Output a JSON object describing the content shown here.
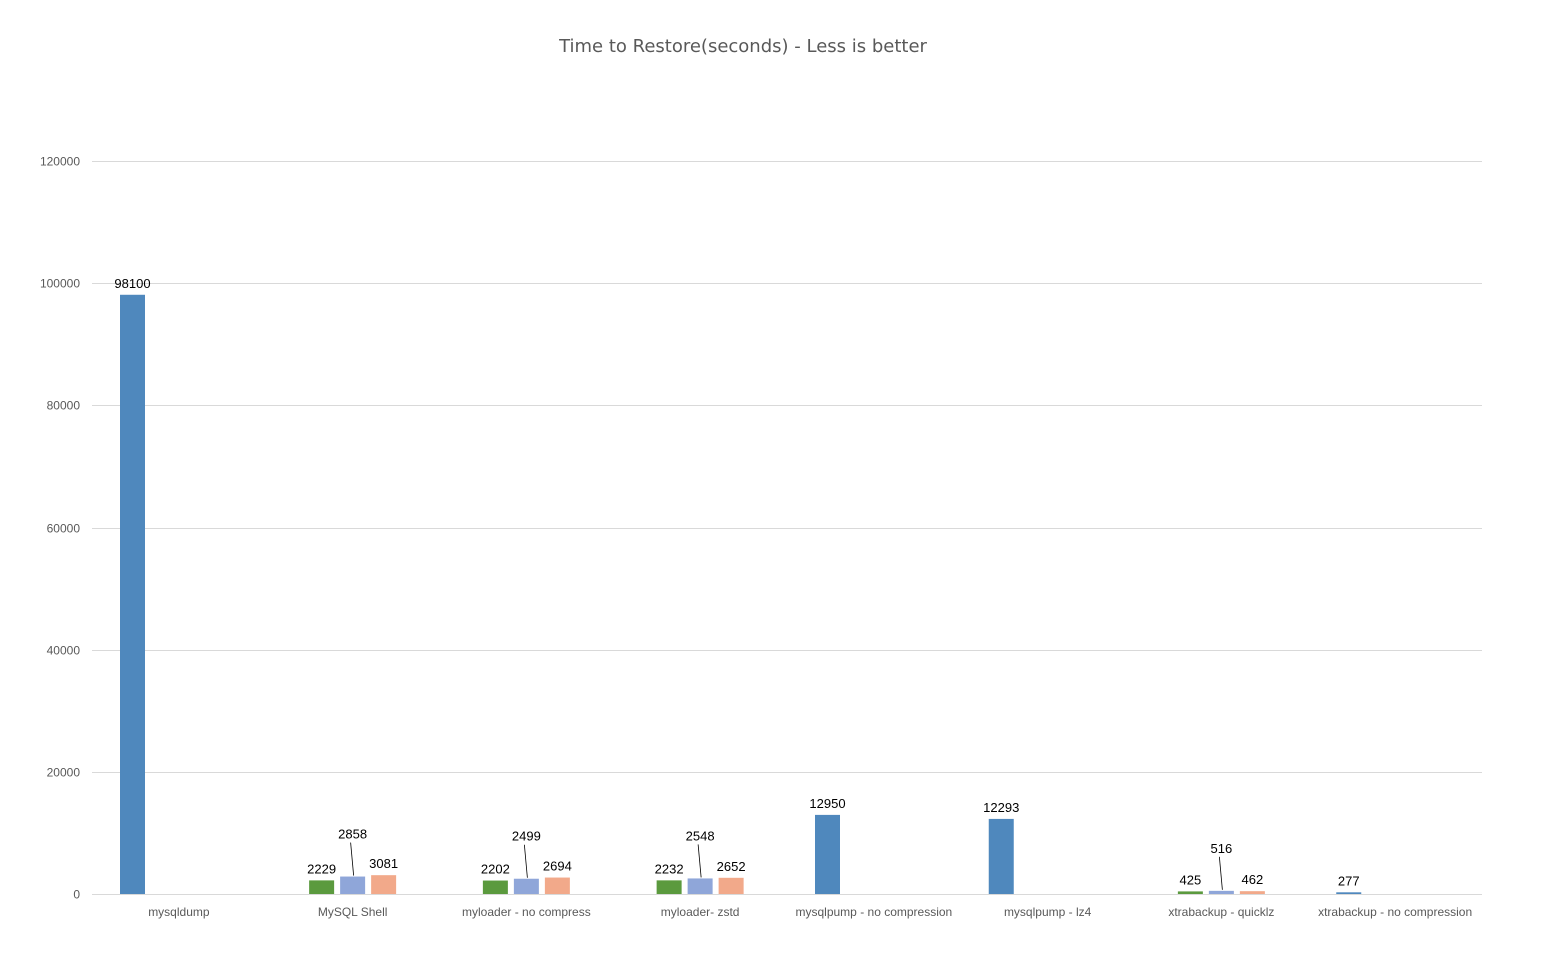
{
  "chart_data": {
    "type": "bar",
    "title": "Time to Restore(seconds) - Less is better",
    "xlabel": "",
    "ylabel": "",
    "ylim": [
      0,
      120000
    ],
    "yticks": [
      0,
      20000,
      40000,
      60000,
      80000,
      100000,
      120000
    ],
    "ytick_labels": [
      "0",
      "20000",
      "40000",
      "60000",
      "80000",
      "100000",
      "120000"
    ],
    "grid": true,
    "legend": "none",
    "categories": [
      "mysqldump",
      "MySQL Shell",
      "myloader - no compress",
      "myloader- zstd",
      "mysqlpump - no compression",
      "mysqlpump - lz4",
      "xtrabackup - quicklz",
      "xtrabackup - no compression"
    ],
    "groups": [
      {
        "bars": [
          {
            "value": 98100,
            "label": "98100",
            "color": "#4f88bd"
          }
        ]
      },
      {
        "bars": [
          {
            "value": 2229,
            "label": "2229",
            "color": "#5b9a3e"
          },
          {
            "value": 2858,
            "label": "2858",
            "color": "#8fa6d9",
            "leader": true
          },
          {
            "value": 3081,
            "label": "3081",
            "color": "#f2a98a"
          }
        ]
      },
      {
        "bars": [
          {
            "value": 2202,
            "label": "2202",
            "color": "#5b9a3e"
          },
          {
            "value": 2499,
            "label": "2499",
            "color": "#8fa6d9",
            "leader": true
          },
          {
            "value": 2694,
            "label": "2694",
            "color": "#f2a98a"
          }
        ]
      },
      {
        "bars": [
          {
            "value": 2232,
            "label": "2232",
            "color": "#5b9a3e"
          },
          {
            "value": 2548,
            "label": "2548",
            "color": "#8fa6d9",
            "leader": true
          },
          {
            "value": 2652,
            "label": "2652",
            "color": "#f2a98a"
          }
        ]
      },
      {
        "bars": [
          {
            "value": 12950,
            "label": "12950",
            "color": "#4f88bd"
          }
        ]
      },
      {
        "bars": [
          {
            "value": 12293,
            "label": "12293",
            "color": "#4f88bd"
          }
        ]
      },
      {
        "bars": [
          {
            "value": 425,
            "label": "425",
            "color": "#5b9a3e"
          },
          {
            "value": 516,
            "label": "516",
            "color": "#8fa6d9",
            "leader": true
          },
          {
            "value": 462,
            "label": "462",
            "color": "#f2a98a"
          }
        ]
      },
      {
        "bars": [
          {
            "value": 277,
            "label": "277",
            "color": "#4f88bd"
          }
        ]
      }
    ]
  }
}
